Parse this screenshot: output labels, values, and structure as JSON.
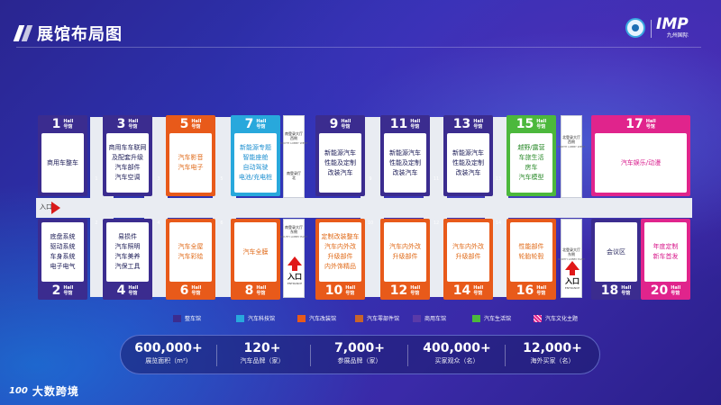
{
  "header": {
    "title": "展馆布局图"
  },
  "logo": {
    "brand": "IMP",
    "tagline": "九州国际"
  },
  "hall_suffix": {
    "en": "Hall",
    "cn": "号馆"
  },
  "halls": {
    "h1": {
      "num": "1",
      "desc": "商用车整车",
      "color": "navy"
    },
    "h2": {
      "num": "2",
      "desc": "底盘系统\n驱动系统\n车身系统\n电子电气",
      "color": "navy"
    },
    "h3": {
      "num": "3",
      "desc": "商用车车联网\n及配套升级\n汽车部件\n汽车空调",
      "color": "navy"
    },
    "h4": {
      "num": "4",
      "desc": "易损件\n汽车照明\n汽车美养\n汽保工具",
      "color": "navy"
    },
    "h5": {
      "num": "5",
      "desc": "汽车影音\n汽车电子",
      "color": "orange"
    },
    "h6": {
      "num": "6",
      "desc": "汽车全屋\n汽车彩绘",
      "color": "orange"
    },
    "h7": {
      "num": "7",
      "desc": "新能源专题\n智能座舱\n自动驾驶\n电池/充电桩",
      "color": "cyan"
    },
    "h8": {
      "num": "8",
      "desc": "汽车全膜",
      "color": "orange"
    },
    "h9": {
      "num": "9",
      "desc": "新能源汽车\n性能及定制\n改装汽车",
      "color": "navy"
    },
    "h10": {
      "num": "10",
      "desc": "定制改装整车\n汽车内外改\n升级部件\n内外饰精品",
      "color": "orange"
    },
    "h11": {
      "num": "11",
      "desc": "新能源汽车\n性能及定制\n改装汽车",
      "color": "navy"
    },
    "h12": {
      "num": "12",
      "desc": "汽车内外改\n升级部件",
      "color": "orange"
    },
    "h13": {
      "num": "13",
      "desc": "新能源汽车\n性能及定制\n改装汽车",
      "color": "navy"
    },
    "h14": {
      "num": "14",
      "desc": "汽车内外改\n升级部件",
      "color": "orange"
    },
    "h15": {
      "num": "15",
      "desc": "越野/露营\n车旅生活\n房车\n汽车模型",
      "color": "green"
    },
    "h16": {
      "num": "16",
      "desc": "性能部件\n轮胎轮毂",
      "color": "orange"
    },
    "h17": {
      "num": "17",
      "desc": "汽车娱乐/动漫",
      "color": "magenta"
    },
    "h18": {
      "num": "18",
      "desc": "会议区",
      "color": "navy"
    },
    "h20": {
      "num": "20",
      "desc": "年度定制\n新车首发",
      "color": "magenta"
    }
  },
  "corridor": {
    "entry": "入口"
  },
  "lobbies": {
    "south_west": {
      "cn": "南登录大厅\n西侧",
      "en": "SOUTH LOBBY WEST"
    },
    "south_west_box": {
      "cn": "南登录厅\n北"
    },
    "south_east_top": {
      "cn": "南登录大厅\n东侧",
      "en": "SOUTH LOBBY EAST"
    },
    "north_west": {
      "cn": "北登录大厅\n西侧",
      "en": "NORTH LOBBY WEST"
    },
    "north_east": {
      "cn": "北登录大厅\n东侧",
      "en": "NORTH LOBBY EAST"
    }
  },
  "entrances": {
    "south": {
      "label": "入口",
      "en": "ENTRANCE"
    },
    "north": {
      "label": "入口",
      "en": "ENTRANCE"
    }
  },
  "stairs": [
    "1",
    "3",
    "5",
    "7",
    "9",
    "11",
    "13",
    "2",
    "4",
    "6",
    "8",
    "10",
    "12",
    "14"
  ],
  "legend": [
    {
      "label": "整车馆",
      "color": "#3b2c8f"
    },
    {
      "label": "汽车科技馆",
      "color": "#28a8dc"
    },
    {
      "label": "汽车改装馆",
      "color": "#e85a1a"
    },
    {
      "label": "汽车零部件馆",
      "color": "#c8642a"
    },
    {
      "label": "商用车馆",
      "color": "#5a3aa8"
    },
    {
      "label": "汽车生活馆",
      "color": "#4cb83c"
    },
    {
      "label": "汽车文化主题",
      "color": "#e0248c"
    }
  ],
  "stats": [
    {
      "value": "600,000+",
      "label": "展览面积（m²）"
    },
    {
      "value": "120+",
      "label": "汽车品牌（家）"
    },
    {
      "value": "7,000+",
      "label": "参展品牌（家）"
    },
    {
      "value": "400,000+",
      "label": "买家观众（名）"
    },
    {
      "value": "12,000+",
      "label": "海外买家（名）"
    }
  ],
  "footer": {
    "brand_icon": "100",
    "brand": "大数跨境"
  }
}
